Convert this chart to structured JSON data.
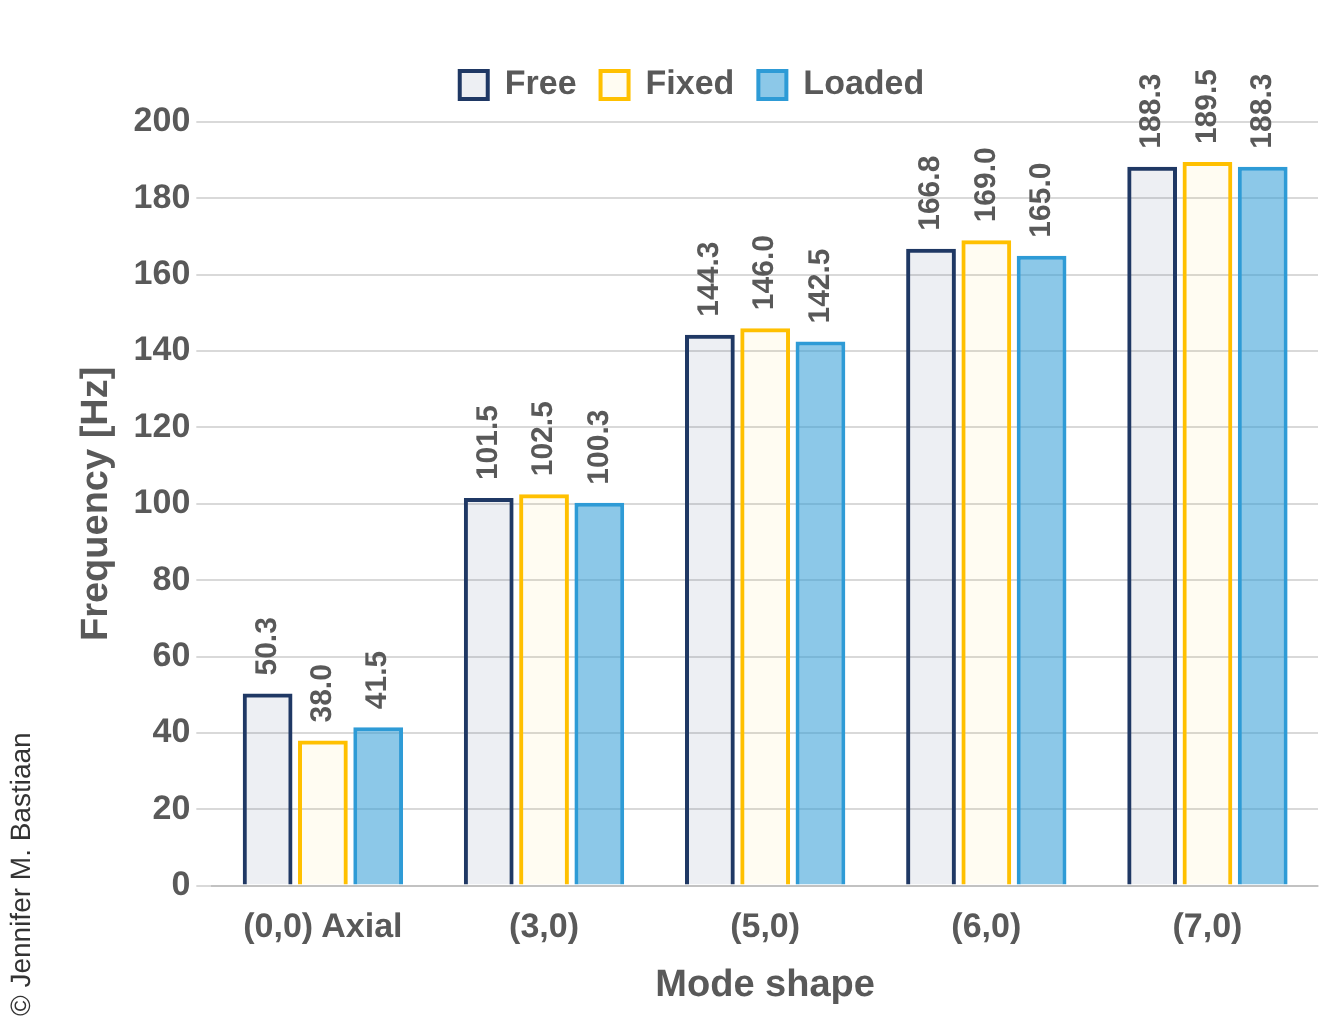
{
  "chart_data": {
    "type": "bar",
    "xlabel": "Mode shape",
    "ylabel": "Frequency [Hz]",
    "categories": [
      "(0,0) Axial",
      "(3,0)",
      "(5,0)",
      "(6,0)",
      "(7,0)"
    ],
    "series": [
      {
        "name": "Free",
        "color": "#1f3864",
        "values": [
          50.3,
          101.5,
          144.3,
          166.8,
          188.3
        ],
        "value_labels": [
          "50.3",
          "101.5",
          "144.3",
          "166.8",
          "188.3"
        ]
      },
      {
        "name": "Fixed",
        "color": "#ffc000",
        "values": [
          38.0,
          102.5,
          146.0,
          169.0,
          189.5
        ],
        "value_labels": [
          "38.0",
          "102.5",
          "146.0",
          "169.0",
          "189.5"
        ]
      },
      {
        "name": "Loaded",
        "color": "#2e9bd6",
        "values": [
          41.5,
          100.3,
          142.5,
          165.0,
          188.3
        ],
        "value_labels": [
          "41.5",
          "100.3",
          "142.5",
          "165.0",
          "188.3"
        ]
      }
    ],
    "ylim": [
      0,
      200
    ],
    "yticks": [
      0,
      20,
      40,
      60,
      80,
      100,
      120,
      140,
      160,
      180,
      200
    ],
    "grid": "y",
    "legend": "top",
    "annotations": [
      "© Jennifer M. Bastiaan"
    ]
  }
}
